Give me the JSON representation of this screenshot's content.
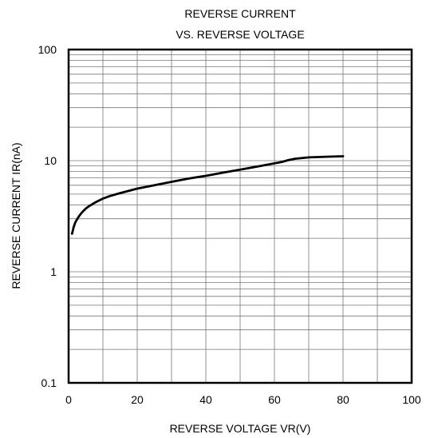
{
  "chart_data": {
    "type": "line",
    "title": [
      "REVERSE CURRENT",
      "VS. REVERSE VOLTAGE"
    ],
    "xlabel": "REVERSE VOLTAGE  VR(V)",
    "ylabel": "REVERSE CURRENT  IR(nA)",
    "x_scale": "linear",
    "y_scale": "log",
    "xlim": [
      0,
      100
    ],
    "ylim": [
      0.1,
      100
    ],
    "x_ticks": [
      "0",
      "20",
      "40",
      "60",
      "80",
      "100"
    ],
    "y_ticks": [
      "0.1",
      "1",
      "10",
      "100"
    ],
    "grid": true,
    "series": [
      {
        "color": "#000000",
        "x": [
          1,
          1.5,
          2,
          3,
          4,
          5,
          6,
          8,
          10,
          12,
          15,
          20,
          25,
          30,
          35,
          40,
          45,
          50,
          55,
          60,
          62,
          64,
          66,
          70,
          75,
          80
        ],
        "y": [
          2.2,
          2.55,
          2.8,
          3.15,
          3.45,
          3.7,
          3.9,
          4.25,
          4.55,
          4.8,
          5.1,
          5.6,
          6.0,
          6.45,
          6.9,
          7.3,
          7.8,
          8.3,
          8.85,
          9.45,
          9.7,
          10.1,
          10.4,
          10.7,
          10.85,
          10.95
        ]
      }
    ]
  }
}
